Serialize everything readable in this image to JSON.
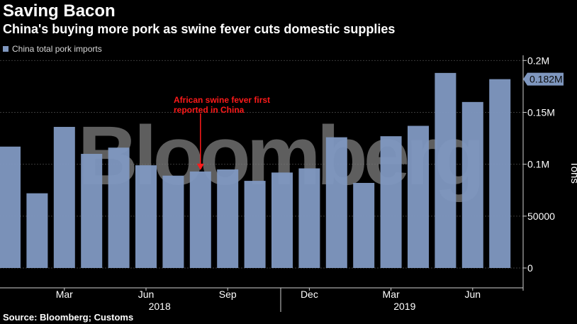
{
  "header": {
    "title": "Saving Bacon",
    "subtitle": "China's buying more pork as swine fever cuts domestic supplies"
  },
  "legend": {
    "label": "China total pork imports"
  },
  "footer": {
    "source": "Source: Bloomberg; Customs"
  },
  "watermark": "Bloomberg",
  "colors": {
    "bar": "#7f97bf",
    "annotation": "#ff1a1a",
    "grid": "#3a3a3a",
    "axis": "#cfcfcf"
  },
  "chart_data": {
    "type": "bar",
    "series": [
      {
        "name": "China total pork imports",
        "values": [
          117000,
          72000,
          136000,
          110000,
          116000,
          99000,
          89000,
          93000,
          95000,
          84000,
          92000,
          96000,
          126000,
          82000,
          127000,
          137000,
          188000,
          160000,
          182000
        ]
      }
    ],
    "x_tick_labels": [
      "Mar",
      "Jun",
      "Sep",
      "Dec",
      "Mar",
      "Jun"
    ],
    "x_tick_index": [
      2,
      5,
      8,
      11,
      14,
      17
    ],
    "year_labels": [
      {
        "label": "2018",
        "index": 5.5
      },
      {
        "label": "2019",
        "index": 14.5
      }
    ],
    "y_ticks": [
      0,
      50000,
      100000,
      150000,
      200000
    ],
    "y_tick_labels": [
      "0",
      "50000",
      "0.1M",
      "0.15M",
      "0.2M"
    ],
    "ylim": [
      0,
      205000
    ],
    "ylabel": "Tons",
    "last_value_label": "0.182M",
    "annotation": {
      "text_lines": [
        "African swine fever first",
        "reported in China"
      ],
      "bar_index": 7
    },
    "grid": true,
    "legend_position": "top-left"
  }
}
